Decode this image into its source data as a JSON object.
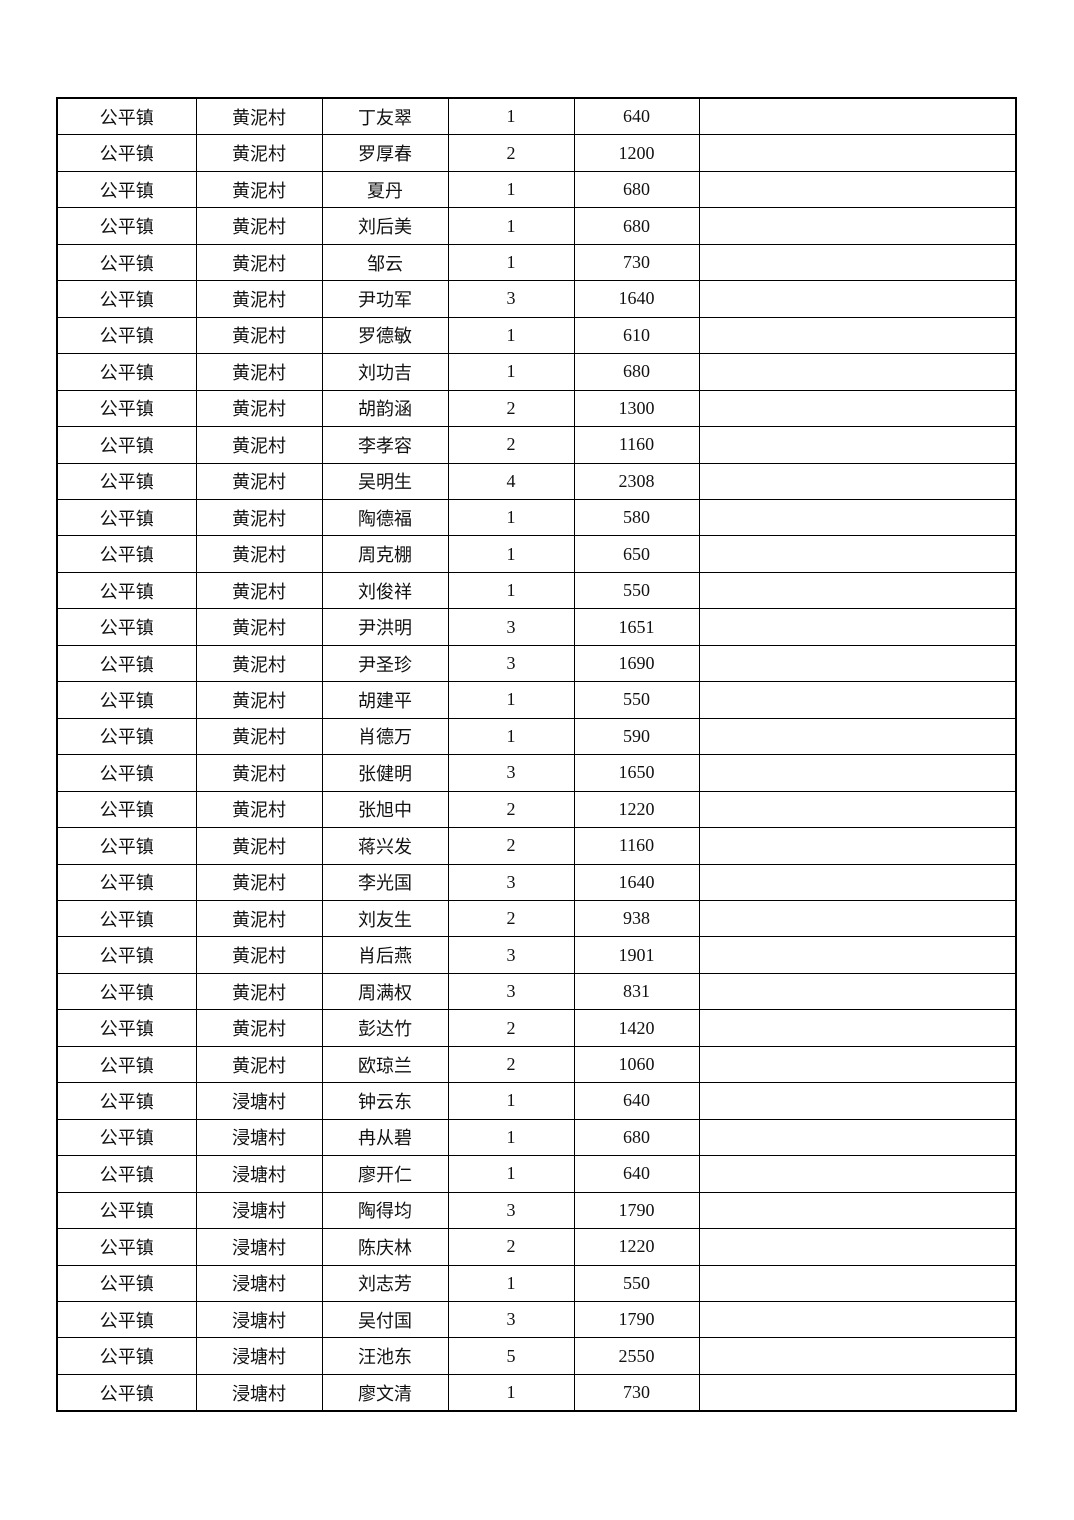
{
  "rows": [
    {
      "town": "公平镇",
      "village": "黄泥村",
      "name": "丁友翠",
      "people": "1",
      "amount": "640",
      "remark": ""
    },
    {
      "town": "公平镇",
      "village": "黄泥村",
      "name": "罗厚春",
      "people": "2",
      "amount": "1200",
      "remark": ""
    },
    {
      "town": "公平镇",
      "village": "黄泥村",
      "name": "夏丹",
      "people": "1",
      "amount": "680",
      "remark": ""
    },
    {
      "town": "公平镇",
      "village": "黄泥村",
      "name": "刘后美",
      "people": "1",
      "amount": "680",
      "remark": ""
    },
    {
      "town": "公平镇",
      "village": "黄泥村",
      "name": "邹云",
      "people": "1",
      "amount": "730",
      "remark": ""
    },
    {
      "town": "公平镇",
      "village": "黄泥村",
      "name": "尹功军",
      "people": "3",
      "amount": "1640",
      "remark": ""
    },
    {
      "town": "公平镇",
      "village": "黄泥村",
      "name": "罗德敏",
      "people": "1",
      "amount": "610",
      "remark": ""
    },
    {
      "town": "公平镇",
      "village": "黄泥村",
      "name": "刘功吉",
      "people": "1",
      "amount": "680",
      "remark": ""
    },
    {
      "town": "公平镇",
      "village": "黄泥村",
      "name": "胡韵涵",
      "people": "2",
      "amount": "1300",
      "remark": ""
    },
    {
      "town": "公平镇",
      "village": "黄泥村",
      "name": "李孝容",
      "people": "2",
      "amount": "1160",
      "remark": ""
    },
    {
      "town": "公平镇",
      "village": "黄泥村",
      "name": "吴明生",
      "people": "4",
      "amount": "2308",
      "remark": ""
    },
    {
      "town": "公平镇",
      "village": "黄泥村",
      "name": "陶德福",
      "people": "1",
      "amount": "580",
      "remark": ""
    },
    {
      "town": "公平镇",
      "village": "黄泥村",
      "name": "周克棚",
      "people": "1",
      "amount": "650",
      "remark": ""
    },
    {
      "town": "公平镇",
      "village": "黄泥村",
      "name": "刘俊祥",
      "people": "1",
      "amount": "550",
      "remark": ""
    },
    {
      "town": "公平镇",
      "village": "黄泥村",
      "name": "尹洪明",
      "people": "3",
      "amount": "1651",
      "remark": ""
    },
    {
      "town": "公平镇",
      "village": "黄泥村",
      "name": "尹圣珍",
      "people": "3",
      "amount": "1690",
      "remark": ""
    },
    {
      "town": "公平镇",
      "village": "黄泥村",
      "name": "胡建平",
      "people": "1",
      "amount": "550",
      "remark": ""
    },
    {
      "town": "公平镇",
      "village": "黄泥村",
      "name": "肖德万",
      "people": "1",
      "amount": "590",
      "remark": ""
    },
    {
      "town": "公平镇",
      "village": "黄泥村",
      "name": "张健明",
      "people": "3",
      "amount": "1650",
      "remark": ""
    },
    {
      "town": "公平镇",
      "village": "黄泥村",
      "name": "张旭中",
      "people": "2",
      "amount": "1220",
      "remark": ""
    },
    {
      "town": "公平镇",
      "village": "黄泥村",
      "name": "蒋兴发",
      "people": "2",
      "amount": "1160",
      "remark": ""
    },
    {
      "town": "公平镇",
      "village": "黄泥村",
      "name": "李光国",
      "people": "3",
      "amount": "1640",
      "remark": ""
    },
    {
      "town": "公平镇",
      "village": "黄泥村",
      "name": "刘友生",
      "people": "2",
      "amount": "938",
      "remark": ""
    },
    {
      "town": "公平镇",
      "village": "黄泥村",
      "name": "肖后燕",
      "people": "3",
      "amount": "1901",
      "remark": ""
    },
    {
      "town": "公平镇",
      "village": "黄泥村",
      "name": "周满权",
      "people": "3",
      "amount": "831",
      "remark": ""
    },
    {
      "town": "公平镇",
      "village": "黄泥村",
      "name": "彭达竹",
      "people": "2",
      "amount": "1420",
      "remark": ""
    },
    {
      "town": "公平镇",
      "village": "黄泥村",
      "name": "欧琼兰",
      "people": "2",
      "amount": "1060",
      "remark": ""
    },
    {
      "town": "公平镇",
      "village": "浸塘村",
      "name": "钟云东",
      "people": "1",
      "amount": "640",
      "remark": ""
    },
    {
      "town": "公平镇",
      "village": "浸塘村",
      "name": "冉从碧",
      "people": "1",
      "amount": "680",
      "remark": ""
    },
    {
      "town": "公平镇",
      "village": "浸塘村",
      "name": "廖开仁",
      "people": "1",
      "amount": "640",
      "remark": ""
    },
    {
      "town": "公平镇",
      "village": "浸塘村",
      "name": "陶得均",
      "people": "3",
      "amount": "1790",
      "remark": ""
    },
    {
      "town": "公平镇",
      "village": "浸塘村",
      "name": "陈庆林",
      "people": "2",
      "amount": "1220",
      "remark": ""
    },
    {
      "town": "公平镇",
      "village": "浸塘村",
      "name": "刘志芳",
      "people": "1",
      "amount": "550",
      "remark": ""
    },
    {
      "town": "公平镇",
      "village": "浸塘村",
      "name": "吴付国",
      "people": "3",
      "amount": "1790",
      "remark": ""
    },
    {
      "town": "公平镇",
      "village": "浸塘村",
      "name": "汪池东",
      "people": "5",
      "amount": "2550",
      "remark": ""
    },
    {
      "town": "公平镇",
      "village": "浸塘村",
      "name": "廖文清",
      "people": "1",
      "amount": "730",
      "remark": ""
    }
  ]
}
